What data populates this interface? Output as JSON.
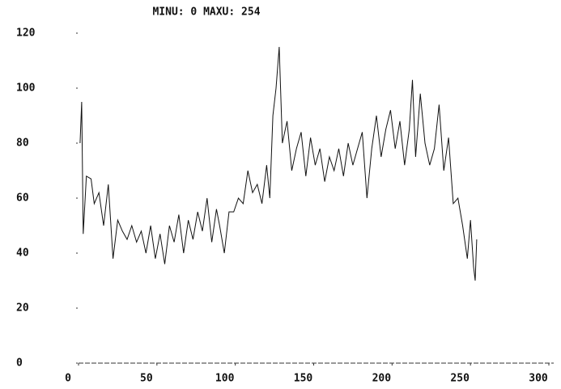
{
  "chart_data": {
    "type": "line",
    "title": "MINU: 0 MAXU: 254",
    "x": [
      1,
      2,
      3,
      5,
      8,
      10,
      13,
      16,
      19,
      22,
      25,
      28,
      31,
      34,
      37,
      40,
      43,
      46,
      49,
      52,
      55,
      58,
      61,
      64,
      67,
      70,
      73,
      76,
      79,
      82,
      85,
      88,
      90,
      93,
      96,
      99,
      102,
      105,
      108,
      111,
      114,
      117,
      120,
      122,
      124,
      126,
      128,
      130,
      133,
      136,
      139,
      142,
      145,
      148,
      151,
      154,
      157,
      160,
      163,
      166,
      169,
      172,
      175,
      178,
      181,
      184,
      187,
      190,
      193,
      196,
      199,
      202,
      205,
      208,
      211,
      213,
      215,
      218,
      221,
      224,
      227,
      230,
      233,
      236,
      239,
      242,
      245,
      248,
      250,
      252,
      253,
      254
    ],
    "values": [
      80,
      95,
      47,
      68,
      67,
      58,
      62,
      50,
      65,
      38,
      52,
      48,
      45,
      50,
      44,
      48,
      40,
      50,
      38,
      47,
      36,
      50,
      44,
      54,
      40,
      52,
      45,
      55,
      48,
      60,
      44,
      56,
      50,
      40,
      55,
      55,
      60,
      58,
      70,
      62,
      65,
      58,
      72,
      60,
      90,
      100,
      115,
      80,
      88,
      70,
      78,
      84,
      68,
      82,
      72,
      78,
      66,
      75,
      70,
      78,
      68,
      80,
      72,
      78,
      84,
      60,
      78,
      90,
      75,
      85,
      92,
      78,
      88,
      72,
      85,
      103,
      75,
      98,
      80,
      72,
      78,
      94,
      70,
      82,
      58,
      60,
      50,
      38,
      52,
      35,
      30,
      45
    ],
    "color": "#111111",
    "xlim": [
      0,
      300
    ],
    "xticks": [
      0,
      50,
      100,
      150,
      200,
      250,
      300
    ],
    "ylim": [
      0,
      120
    ],
    "yticks": [
      0,
      20,
      40,
      60,
      80,
      100,
      120
    ]
  }
}
